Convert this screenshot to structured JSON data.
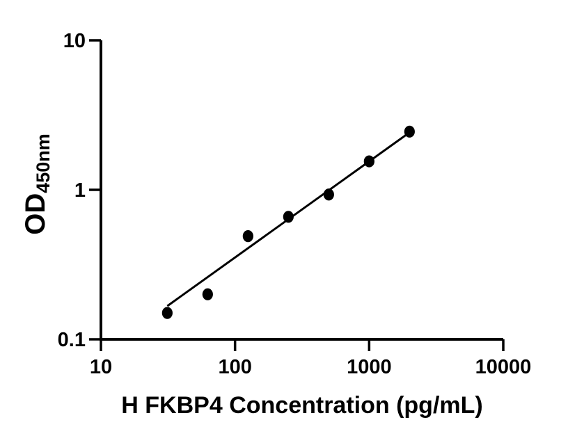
{
  "figure": {
    "background_color": "#ffffff",
    "ink_color": "#000000"
  },
  "chart_data": {
    "type": "scatter",
    "title": "",
    "xlabel": "H FKBP4 Concentration (pg/mL)",
    "ylabel_main": "OD",
    "ylabel_subscript": "450nm",
    "x_scale": "log10",
    "y_scale": "log10",
    "xlim": [
      10,
      10000
    ],
    "ylim": [
      0.1,
      10
    ],
    "grid": false,
    "legend": "none",
    "x_ticks": [
      {
        "value": 10,
        "label": "10"
      },
      {
        "value": 100,
        "label": "100"
      },
      {
        "value": 1000,
        "label": "1000"
      },
      {
        "value": 10000,
        "label": "10000"
      }
    ],
    "y_ticks": [
      {
        "value": 0.1,
        "label": "0.1"
      },
      {
        "value": 1,
        "label": "1"
      },
      {
        "value": 10,
        "label": "10"
      }
    ],
    "marker": "filled-ellipse",
    "marker_color": "#000000",
    "points": [
      {
        "x": 31.25,
        "y": 0.15
      },
      {
        "x": 62.5,
        "y": 0.2
      },
      {
        "x": 125,
        "y": 0.49
      },
      {
        "x": 250,
        "y": 0.66
      },
      {
        "x": 500,
        "y": 0.93
      },
      {
        "x": 1000,
        "y": 1.55
      },
      {
        "x": 2000,
        "y": 2.45
      }
    ],
    "fit_line": {
      "x1": 31.25,
      "y1": 0.167,
      "x2": 2000,
      "y2": 2.42,
      "color": "#000000"
    }
  }
}
